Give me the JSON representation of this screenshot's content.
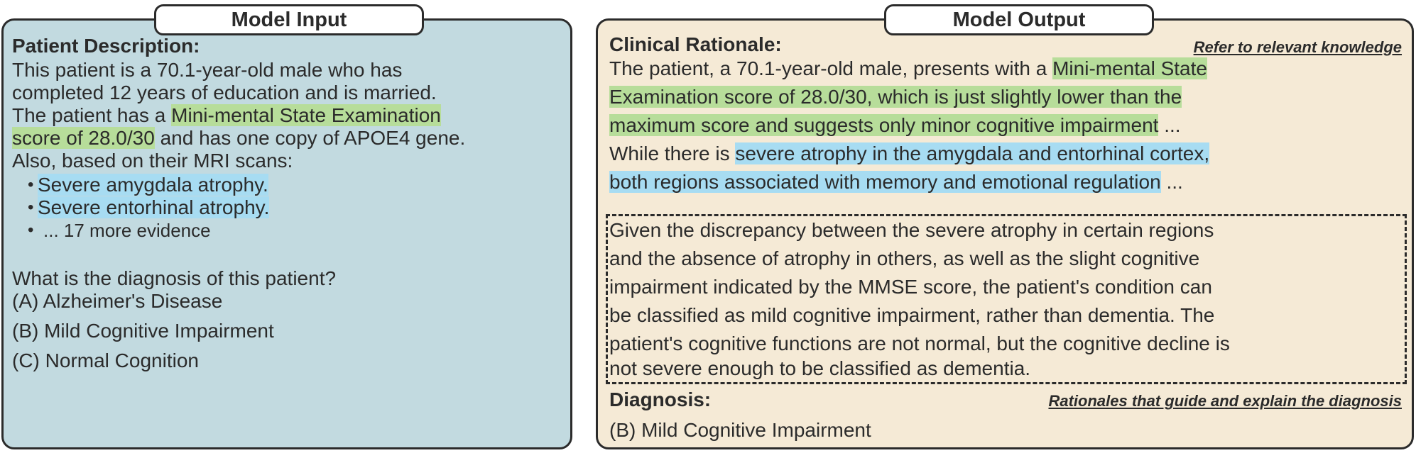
{
  "input": {
    "title": "Model Input",
    "heading": "Patient Description:",
    "line1": "This patient is a 70.1-year-old male who has",
    "line2": "completed 12 years of education and is married.",
    "line3_pre": "The patient has a ",
    "line3_hl": "Mini-mental State Examination",
    "line4_hl": "score of 28.0/30",
    "line4_post": " and has one copy of APOE4 gene.",
    "line5": "Also, based on their MRI scans:",
    "bullets": [
      "Severe amygdala atrophy.",
      "Severe entorhinal atrophy.",
      "... 17 more evidence"
    ],
    "question": "What is the diagnosis of this patient?",
    "options": [
      "(A) Alzheimer's Disease",
      "(B) Mild Cognitive Impairment",
      "(C) Normal Cognition"
    ]
  },
  "output": {
    "title": "Model Output",
    "heading": "Clinical Rationale:",
    "note_top": "Refer to relevant knowledge",
    "r1_pre": "The patient, a 70.1-year-old male, presents with a ",
    "r1_hl": "Mini-mental State",
    "r2_hl": "Examination score of 28.0/30, which is just slightly lower than the",
    "r3_hl": "maximum score and suggests only minor cognitive impairment",
    "r3_post": " ...",
    "r4_pre": "While there is ",
    "r4_hl": "severe atrophy in the amygdala and entorhinal cortex,",
    "r5_hl": "both regions associated with memory and emotional regulation",
    "r5_post": " ...",
    "box_lines": [
      "Given the discrepancy between the severe atrophy in certain regions",
      "and the absence of atrophy in others, as well as the slight cognitive",
      "impairment indicated by the MMSE score, the patient's condition can",
      "be classified as mild cognitive impairment, rather than dementia. The",
      "patient's cognitive functions are not normal, but the cognitive decline is",
      "not severe enough to be classified as dementia."
    ],
    "diag_heading": "Diagnosis:",
    "note_bottom": "Rationales that guide and explain the diagnosis",
    "answer": "(B) Mild Cognitive Impairment"
  }
}
